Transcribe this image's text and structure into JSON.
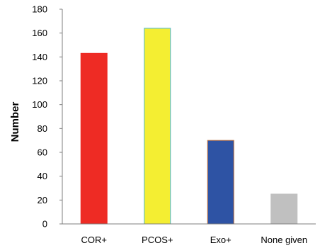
{
  "chart_data": {
    "type": "bar",
    "title": "",
    "xlabel": "",
    "ylabel": "Number",
    "ylim": [
      0,
      180
    ],
    "yticks": [
      0,
      20,
      40,
      60,
      80,
      100,
      120,
      140,
      160,
      180
    ],
    "grid": false,
    "legend": "none",
    "categories": [
      "COR+",
      "PCOS+",
      "Exo+",
      "None given"
    ],
    "values": [
      143,
      164,
      70,
      25
    ],
    "bar_colors": [
      "#ee2b24",
      "#f4ee32",
      "#2e53a4",
      "#c0c0c0"
    ],
    "bar_outline_colors": [
      "#ee2b24",
      "#4bb7c9",
      "#c0703b",
      "#c0c0c0"
    ]
  }
}
